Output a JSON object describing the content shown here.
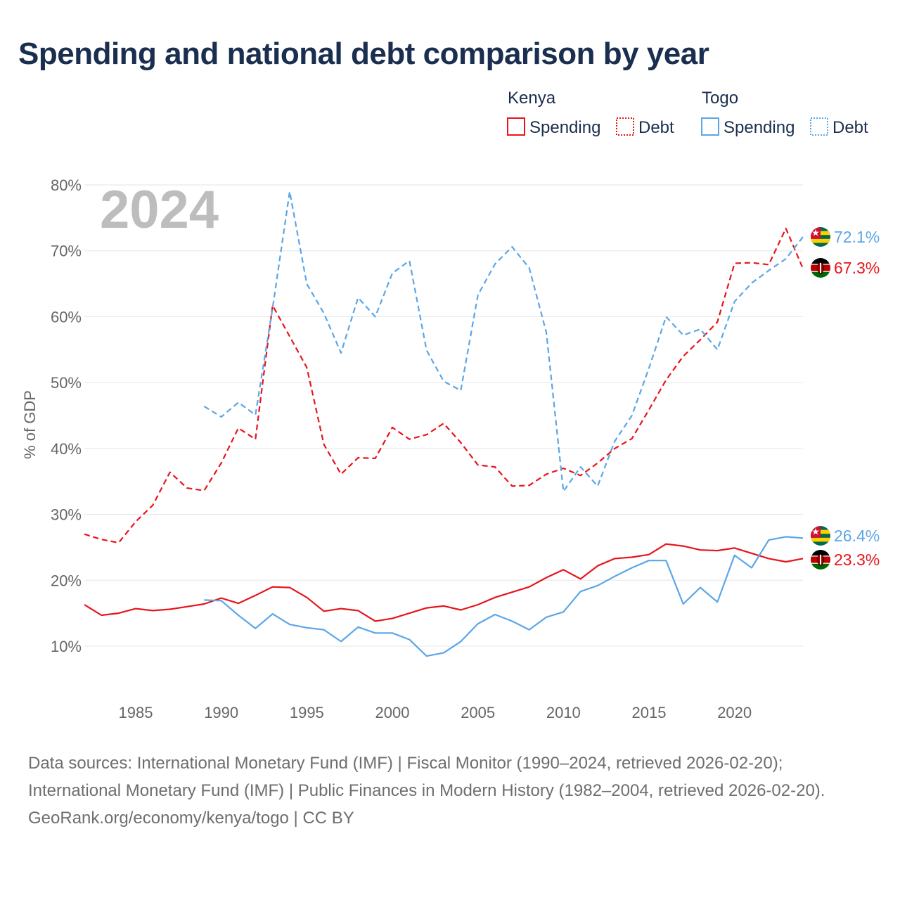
{
  "title": "Spending and national debt comparison by year",
  "year_label": "2024",
  "legend": {
    "groups": [
      {
        "name": "Kenya",
        "items": [
          "Spending",
          "Debt"
        ]
      },
      {
        "name": "Togo",
        "items": [
          "Spending",
          "Debt"
        ]
      }
    ]
  },
  "colors": {
    "kenya": "#e8141b",
    "togo": "#5ba6e6",
    "title": "#1a2e4f",
    "grid": "#e6e6e6"
  },
  "end_labels": {
    "togo_debt": "72.1%",
    "kenya_debt": "67.3%",
    "togo_spending": "26.4%",
    "kenya_spending": "23.3%"
  },
  "footer": {
    "sources": "Data sources: International Monetary Fund (IMF) | Fiscal Monitor (1990–2024, retrieved 2026-02-20); International Monetary Fund (IMF) | Public Finances in Modern History (1982–2004, retrieved 2026-02-20).",
    "credit": "GeoRank.org/economy/kenya/togo | CC BY"
  },
  "chart_data": {
    "type": "line",
    "title": "Spending and national debt comparison by year",
    "xlabel": "",
    "ylabel": "% of GDP",
    "xlim": [
      1982,
      2024
    ],
    "ylim": [
      4,
      82
    ],
    "x_ticks": [
      1985,
      1990,
      1995,
      2000,
      2005,
      2010,
      2015,
      2020
    ],
    "y_ticks": [
      10,
      20,
      30,
      40,
      50,
      60,
      70,
      80
    ],
    "y_tick_labels": [
      "10%",
      "20%",
      "30%",
      "40%",
      "50%",
      "60%",
      "70%",
      "80%"
    ],
    "series": [
      {
        "name": "Kenya Spending",
        "country": "Kenya",
        "metric": "Spending",
        "style": "solid",
        "x": [
          1982,
          1983,
          1984,
          1985,
          1986,
          1987,
          1988,
          1989,
          1990,
          1991,
          1992,
          1993,
          1994,
          1995,
          1996,
          1997,
          1998,
          1999,
          2000,
          2001,
          2002,
          2003,
          2004,
          2005,
          2006,
          2007,
          2008,
          2009,
          2010,
          2011,
          2012,
          2013,
          2014,
          2015,
          2016,
          2017,
          2018,
          2019,
          2020,
          2021,
          2022,
          2023,
          2024
        ],
        "values": [
          16.3,
          14.7,
          15.0,
          15.7,
          15.4,
          15.6,
          16.0,
          16.4,
          17.3,
          16.5,
          17.7,
          19.0,
          18.9,
          17.4,
          15.3,
          15.7,
          15.4,
          13.8,
          14.2,
          15.0,
          15.8,
          16.1,
          15.5,
          16.3,
          17.4,
          18.2,
          19.0,
          20.4,
          21.6,
          20.2,
          22.2,
          23.3,
          23.5,
          23.9,
          25.5,
          25.2,
          24.6,
          24.5,
          24.9,
          24.1,
          23.3,
          22.8,
          23.3
        ]
      },
      {
        "name": "Kenya Debt",
        "country": "Kenya",
        "metric": "Debt",
        "style": "dashed",
        "x": [
          1982,
          1983,
          1984,
          1985,
          1986,
          1987,
          1988,
          1989,
          1990,
          1991,
          1992,
          1993,
          1994,
          1995,
          1996,
          1997,
          1998,
          1999,
          2000,
          2001,
          2002,
          2003,
          2004,
          2005,
          2006,
          2007,
          2008,
          2009,
          2010,
          2011,
          2012,
          2013,
          2014,
          2015,
          2016,
          2017,
          2018,
          2019,
          2020,
          2021,
          2022,
          2023,
          2024
        ],
        "values": [
          27.0,
          26.2,
          25.7,
          28.9,
          31.4,
          36.4,
          34.0,
          33.6,
          37.8,
          43.1,
          41.4,
          61.7,
          57.0,
          52.3,
          40.6,
          36.1,
          38.6,
          38.5,
          43.2,
          41.4,
          42.1,
          43.8,
          40.9,
          37.5,
          37.2,
          34.3,
          34.4,
          36.1,
          37.0,
          35.9,
          37.8,
          40.0,
          41.5,
          45.9,
          50.4,
          54.0,
          56.5,
          59.2,
          68.1,
          68.2,
          67.9,
          73.4,
          67.3
        ]
      },
      {
        "name": "Togo Spending",
        "country": "Togo",
        "metric": "Spending",
        "style": "solid",
        "x": [
          1989,
          1990,
          1991,
          1992,
          1993,
          1994,
          1995,
          1996,
          1997,
          1998,
          1999,
          2000,
          2001,
          2002,
          2003,
          2004,
          2005,
          2006,
          2007,
          2008,
          2009,
          2010,
          2011,
          2012,
          2013,
          2014,
          2015,
          2016,
          2017,
          2018,
          2019,
          2020,
          2021,
          2022,
          2023,
          2024
        ],
        "values": [
          17.0,
          16.9,
          14.7,
          12.7,
          14.9,
          13.3,
          12.8,
          12.5,
          10.7,
          12.9,
          12.0,
          12.0,
          11.0,
          8.5,
          9.0,
          10.7,
          13.4,
          14.8,
          13.8,
          12.5,
          14.4,
          15.2,
          18.3,
          19.2,
          20.6,
          21.9,
          23.0,
          23.0,
          16.4,
          18.9,
          16.7,
          23.8,
          21.9,
          26.1,
          26.6,
          26.4
        ]
      },
      {
        "name": "Togo Debt",
        "country": "Togo",
        "metric": "Debt",
        "style": "dashed",
        "x": [
          1989,
          1990,
          1991,
          1992,
          1993,
          1994,
          1995,
          1996,
          1997,
          1998,
          1999,
          2000,
          2001,
          2002,
          2003,
          2004,
          2005,
          2006,
          2007,
          2008,
          2009,
          2010,
          2011,
          2012,
          2013,
          2014,
          2015,
          2016,
          2017,
          2018,
          2019,
          2020,
          2021,
          2022,
          2023,
          2024
        ],
        "values": [
          46.4,
          44.8,
          47.0,
          45.1,
          61.3,
          79.0,
          65.0,
          60.5,
          54.5,
          62.9,
          60.0,
          66.6,
          68.5,
          54.9,
          50.2,
          48.8,
          63.3,
          68.0,
          70.6,
          67.4,
          57.6,
          33.5,
          37.2,
          34.3,
          41.1,
          45.0,
          52.2,
          60.0,
          57.2,
          58.1,
          55.0,
          62.3,
          65.1,
          67.0,
          68.8,
          72.1
        ]
      }
    ],
    "legend_position": "top-right",
    "grid": true
  }
}
